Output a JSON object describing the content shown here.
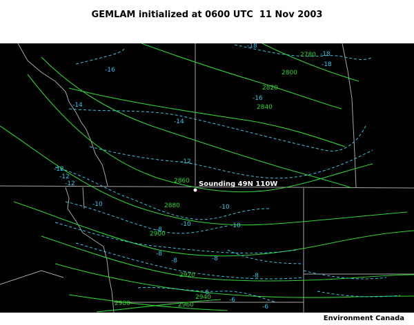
{
  "title": "GEMLAM initialized at 0600 UTC  11 Nov 2003",
  "credit": "Environment Canada",
  "colors": {
    "background": "#000000",
    "height_contour": "#35d335",
    "temperature_contour": "#3ec6e6",
    "boundary": "#a8a8a8",
    "sounding_marker": "#ffffff"
  },
  "sounding": {
    "label": "Sounding 49N 110W"
  },
  "height_labels": [
    "2780",
    "2800",
    "2820",
    "2840",
    "2860",
    "2880",
    "2900",
    "2920",
    "2940",
    "2960",
    "2980"
  ],
  "temperature_labels": [
    "-18",
    "-18",
    "-18",
    "-16",
    "-16",
    "-14",
    "-14",
    "-12",
    "-12",
    "-12",
    "-12",
    "-10",
    "-10",
    "-10",
    "-10",
    "-8",
    "-8",
    "-8",
    "-8",
    "-8",
    "-6",
    "-6",
    "-6"
  ]
}
